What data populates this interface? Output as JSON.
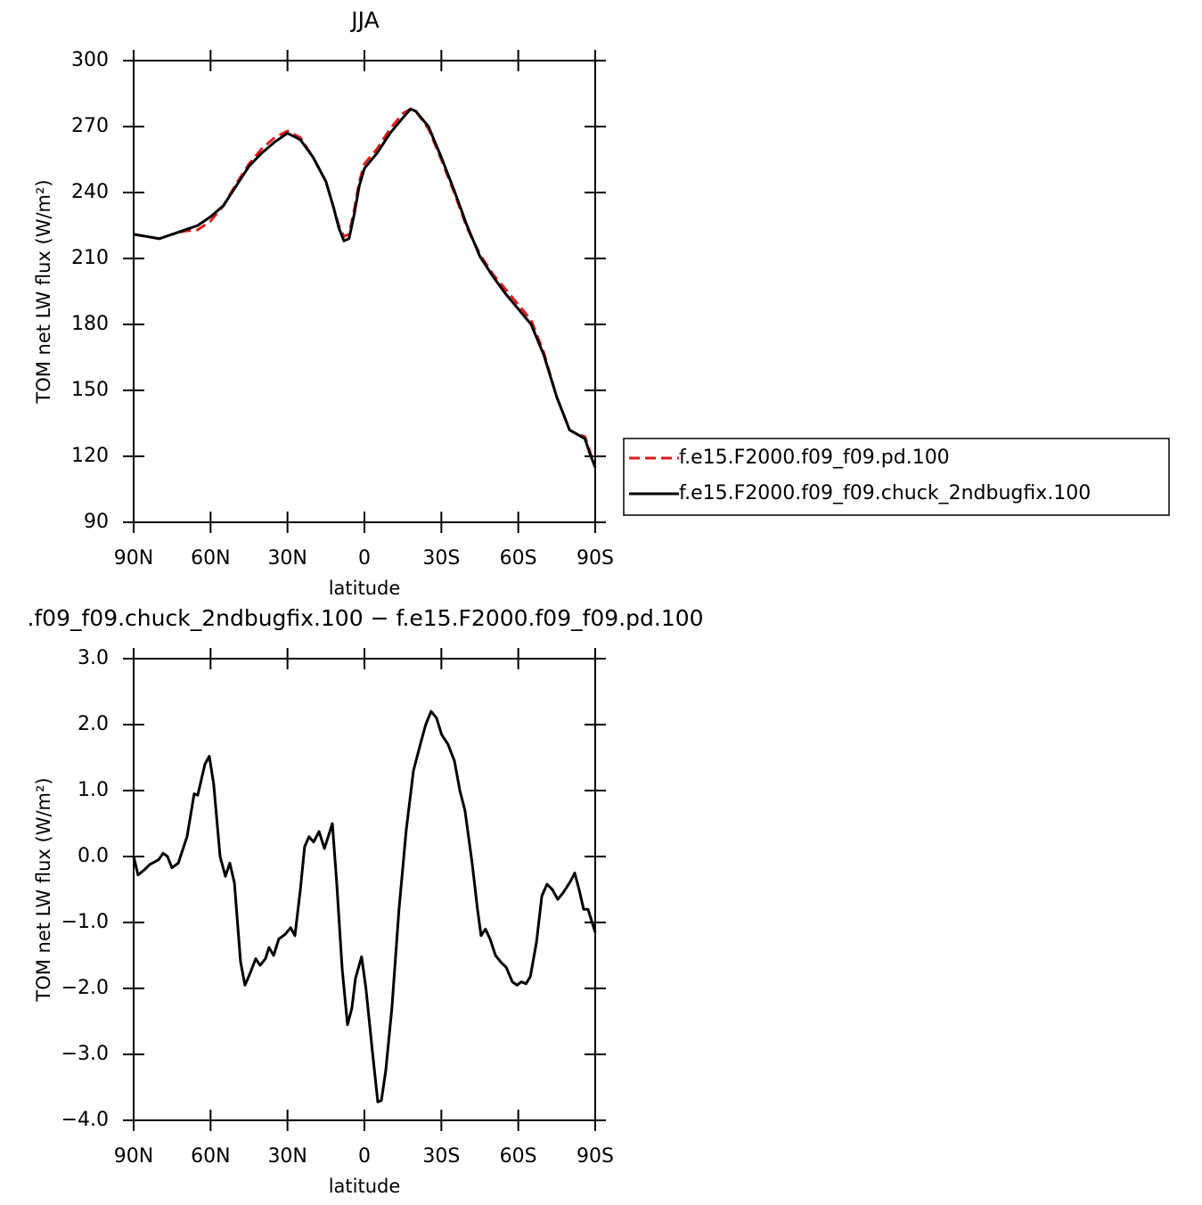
{
  "chart_data": [
    {
      "type": "line",
      "title": "JJA",
      "xlabel": "latitude",
      "ylabel": "TOM net LW flux (W/m²)",
      "x": [
        90,
        85,
        80,
        75,
        70,
        65,
        60,
        55,
        50,
        45,
        40,
        35,
        30,
        25,
        20,
        15,
        12,
        10,
        8,
        6,
        4,
        2,
        0,
        -5,
        -10,
        -15,
        -18,
        -20,
        -25,
        -30,
        -35,
        -40,
        -45,
        -50,
        -55,
        -60,
        -65,
        -70,
        -75,
        -78,
        -80,
        -83,
        -86,
        -88,
        -90
      ],
      "series": [
        {
          "name": "f.e15.F2000.f09_f09.pd.100",
          "color": "#e41a1c",
          "dashed": true,
          "values": [
            221,
            220,
            219,
            221,
            222.5,
            223,
            227,
            234,
            244,
            253,
            260,
            265,
            268,
            265,
            256,
            245,
            233,
            225,
            220,
            221,
            232,
            245,
            253,
            260,
            269,
            276,
            278,
            277,
            269,
            255,
            240,
            224,
            212,
            203,
            196,
            189,
            182,
            167,
            147,
            138,
            132,
            130,
            129,
            122,
            115
          ]
        },
        {
          "name": "f.e15.F2000.f09_f09.chuck_2ndbugfix.100",
          "color": "#000000",
          "dashed": false,
          "values": [
            221,
            220,
            219,
            221,
            223,
            225,
            229,
            234,
            243,
            252,
            258,
            263,
            267,
            264,
            256,
            245,
            233,
            224,
            218,
            219,
            230,
            243,
            251,
            258,
            267,
            274,
            278,
            277,
            270,
            256,
            241,
            225,
            211,
            202,
            194,
            187,
            180,
            166,
            147,
            138,
            132,
            130,
            128,
            121,
            115
          ]
        }
      ],
      "xlim": [
        90,
        -90
      ],
      "xticks": [
        {
          "value": 90,
          "label": "90N"
        },
        {
          "value": 60,
          "label": "60N"
        },
        {
          "value": 30,
          "label": "30N"
        },
        0,
        {
          "value": -30,
          "label": "30S"
        },
        {
          "value": -60,
          "label": "60S"
        },
        {
          "value": -90,
          "label": "90S"
        }
      ],
      "ylim": [
        90,
        300
      ],
      "yticks": [
        90,
        120,
        150,
        180,
        210,
        240,
        270,
        300
      ],
      "legend": "right"
    },
    {
      "type": "line",
      "title": ".f09_f09.chuck_2ndbugfix.100 − f.e15.F2000.f09_f09.pd.100",
      "xlabel": "latitude",
      "ylabel": "TOM net LW flux (W/m²)",
      "x": [
        90,
        88.3,
        85.8,
        83.7,
        80.3,
        78.5,
        76.8,
        75.1,
        72.6,
        69.2,
        66.4,
        65,
        62.2,
        60.5,
        58.8,
        56.3,
        54.2,
        52.5,
        50.7,
        48.3,
        46.6,
        44.9,
        42.4,
        40.7,
        38.6,
        37.2,
        35.4,
        33.4,
        30.9,
        28.8,
        27.1,
        25,
        23.3,
        21.6,
        19.8,
        17.7,
        15.6,
        12.5,
        10.8,
        8.7,
        6.6,
        4.9,
        3.5,
        1.1,
        -0.6,
        -3.1,
        -5.2,
        -6.6,
        -8.3,
        -10.7,
        -13.5,
        -16.3,
        -19.1,
        -21.8,
        -23.9,
        -26,
        -28.1,
        -30.1,
        -32.6,
        -35.1,
        -37.2,
        -39.2,
        -42,
        -44.1,
        -45.5,
        -47.2,
        -49,
        -51.1,
        -53.2,
        -55.3,
        -57.7,
        -59.5,
        -61.2,
        -63,
        -64.7,
        -67.1,
        -69.2,
        -71.2,
        -73.3,
        -75.4,
        -77.5,
        -80.3,
        -82,
        -83.7,
        -85.5,
        -87.2,
        -90
      ],
      "series": [
        {
          "name": null,
          "color": "#000000",
          "dashed": false,
          "values": [
            0.0,
            -0.28,
            -0.2,
            -0.12,
            -0.05,
            0.05,
            0.0,
            -0.17,
            -0.1,
            0.3,
            0.95,
            0.93,
            1.4,
            1.52,
            1.1,
            0.0,
            -0.3,
            -0.1,
            -0.4,
            -1.6,
            -1.95,
            -1.8,
            -1.55,
            -1.65,
            -1.55,
            -1.38,
            -1.5,
            -1.25,
            -1.18,
            -1.08,
            -1.2,
            -0.5,
            0.15,
            0.3,
            0.22,
            0.38,
            0.12,
            0.5,
            -0.4,
            -1.7,
            -2.55,
            -2.3,
            -1.85,
            -1.52,
            -2.0,
            -2.95,
            -3.72,
            -3.7,
            -3.25,
            -2.3,
            -0.8,
            0.4,
            1.3,
            1.7,
            2.0,
            2.2,
            2.1,
            1.85,
            1.7,
            1.45,
            1.0,
            0.7,
            -0.1,
            -0.8,
            -1.2,
            -1.1,
            -1.25,
            -1.5,
            -1.6,
            -1.68,
            -1.9,
            -1.95,
            -1.9,
            -1.93,
            -1.82,
            -1.3,
            -0.6,
            -0.42,
            -0.5,
            -0.65,
            -0.55,
            -0.38,
            -0.25,
            -0.5,
            -0.8,
            -0.8,
            -1.15
          ]
        }
      ],
      "xlim": [
        90,
        -90
      ],
      "xticks": [
        {
          "value": 90,
          "label": "90N"
        },
        {
          "value": 60,
          "label": "60N"
        },
        {
          "value": 30,
          "label": "30N"
        },
        0,
        {
          "value": -30,
          "label": "30S"
        },
        {
          "value": -60,
          "label": "60S"
        },
        {
          "value": -90,
          "label": "90S"
        }
      ],
      "ylim": [
        -4,
        3
      ],
      "yticks": [
        {
          "value": -4,
          "label": "−4.0"
        },
        {
          "value": -3,
          "label": "−3.0"
        },
        {
          "value": -2,
          "label": "−2.0"
        },
        {
          "value": -1,
          "label": "−1.0"
        },
        {
          "value": 0,
          "label": "0.0"
        },
        {
          "value": 1,
          "label": "1.0"
        },
        {
          "value": 2,
          "label": "2.0"
        },
        {
          "value": 3,
          "label": "3.0"
        }
      ]
    }
  ]
}
